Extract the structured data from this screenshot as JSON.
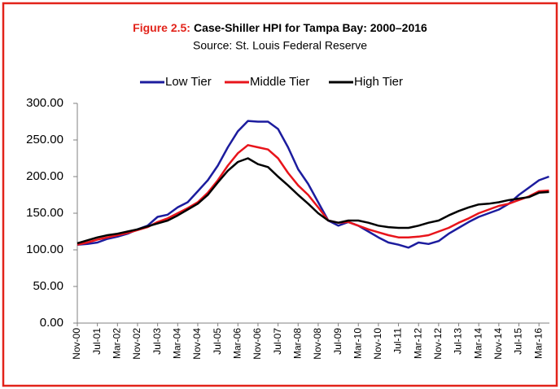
{
  "chart_data": {
    "type": "line",
    "title_label": "Figure 2.5:",
    "title": "Case-Shiller HPI for Tampa Bay: 2000–2016",
    "subtitle": "Source: St. Louis Federal Reserve",
    "legend": "top",
    "categories": [
      "Nov-00",
      null,
      "Jul-01",
      null,
      "Mar-02",
      null,
      "Nov-02",
      null,
      "Jul-03",
      null,
      "Mar-04",
      null,
      "Nov-04",
      null,
      "Jul-05",
      null,
      "Mar-06",
      null,
      "Nov-06",
      null,
      "Jul-07",
      null,
      "Mar-08",
      null,
      "Nov-08",
      null,
      "Jul-09",
      null,
      "Mar-10",
      null,
      "Nov-10",
      null,
      "Jul-11",
      null,
      "Mar-12",
      null,
      "Nov-12",
      null,
      "Jul-13",
      null,
      "Mar-14",
      null,
      "Nov-14",
      null,
      "Jul-15",
      null,
      "Mar-16",
      null
    ],
    "series": [
      {
        "name": "Low Tier",
        "color": "#1c1c9e",
        "values": [
          107,
          108,
          110,
          115,
          118,
          122,
          128,
          133,
          145,
          148,
          158,
          165,
          180,
          195,
          215,
          240,
          262,
          276,
          275,
          275,
          265,
          240,
          210,
          190,
          165,
          140,
          133,
          138,
          133,
          125,
          117,
          110,
          107,
          103,
          110,
          108,
          112,
          122,
          130,
          138,
          145,
          150,
          155,
          163,
          175,
          185,
          195,
          200
        ]
      },
      {
        "name": "Middle Tier",
        "color": "#e8141b",
        "values": [
          107,
          110,
          114,
          117,
          120,
          123,
          127,
          131,
          138,
          143,
          150,
          157,
          165,
          178,
          195,
          215,
          232,
          243,
          240,
          237,
          225,
          205,
          188,
          175,
          158,
          140,
          137,
          138,
          133,
          128,
          124,
          120,
          117,
          117,
          118,
          120,
          125,
          130,
          137,
          143,
          150,
          155,
          160,
          163,
          168,
          173,
          180,
          181
        ]
      },
      {
        "name": "High Tier",
        "color": "#000000",
        "values": [
          109,
          113,
          117,
          120,
          122,
          125,
          128,
          132,
          136,
          140,
          147,
          155,
          163,
          175,
          192,
          208,
          220,
          225,
          217,
          213,
          200,
          188,
          175,
          163,
          150,
          140,
          137,
          140,
          140,
          137,
          133,
          131,
          130,
          130,
          133,
          137,
          140,
          147,
          153,
          158,
          162,
          163,
          165,
          168,
          170,
          172,
          178,
          179
        ]
      }
    ],
    "ylim": [
      0,
      300
    ],
    "yticks": [
      {
        "value": 0,
        "label": "0.00"
      },
      {
        "value": 50,
        "label": "50.00"
      },
      {
        "value": 100,
        "label": "100.00"
      },
      {
        "value": 150,
        "label": "150.00"
      },
      {
        "value": 200,
        "label": "200.00"
      },
      {
        "value": 250,
        "label": "250.00"
      },
      {
        "value": 300,
        "label": "300.00"
      }
    ],
    "grid": false
  }
}
